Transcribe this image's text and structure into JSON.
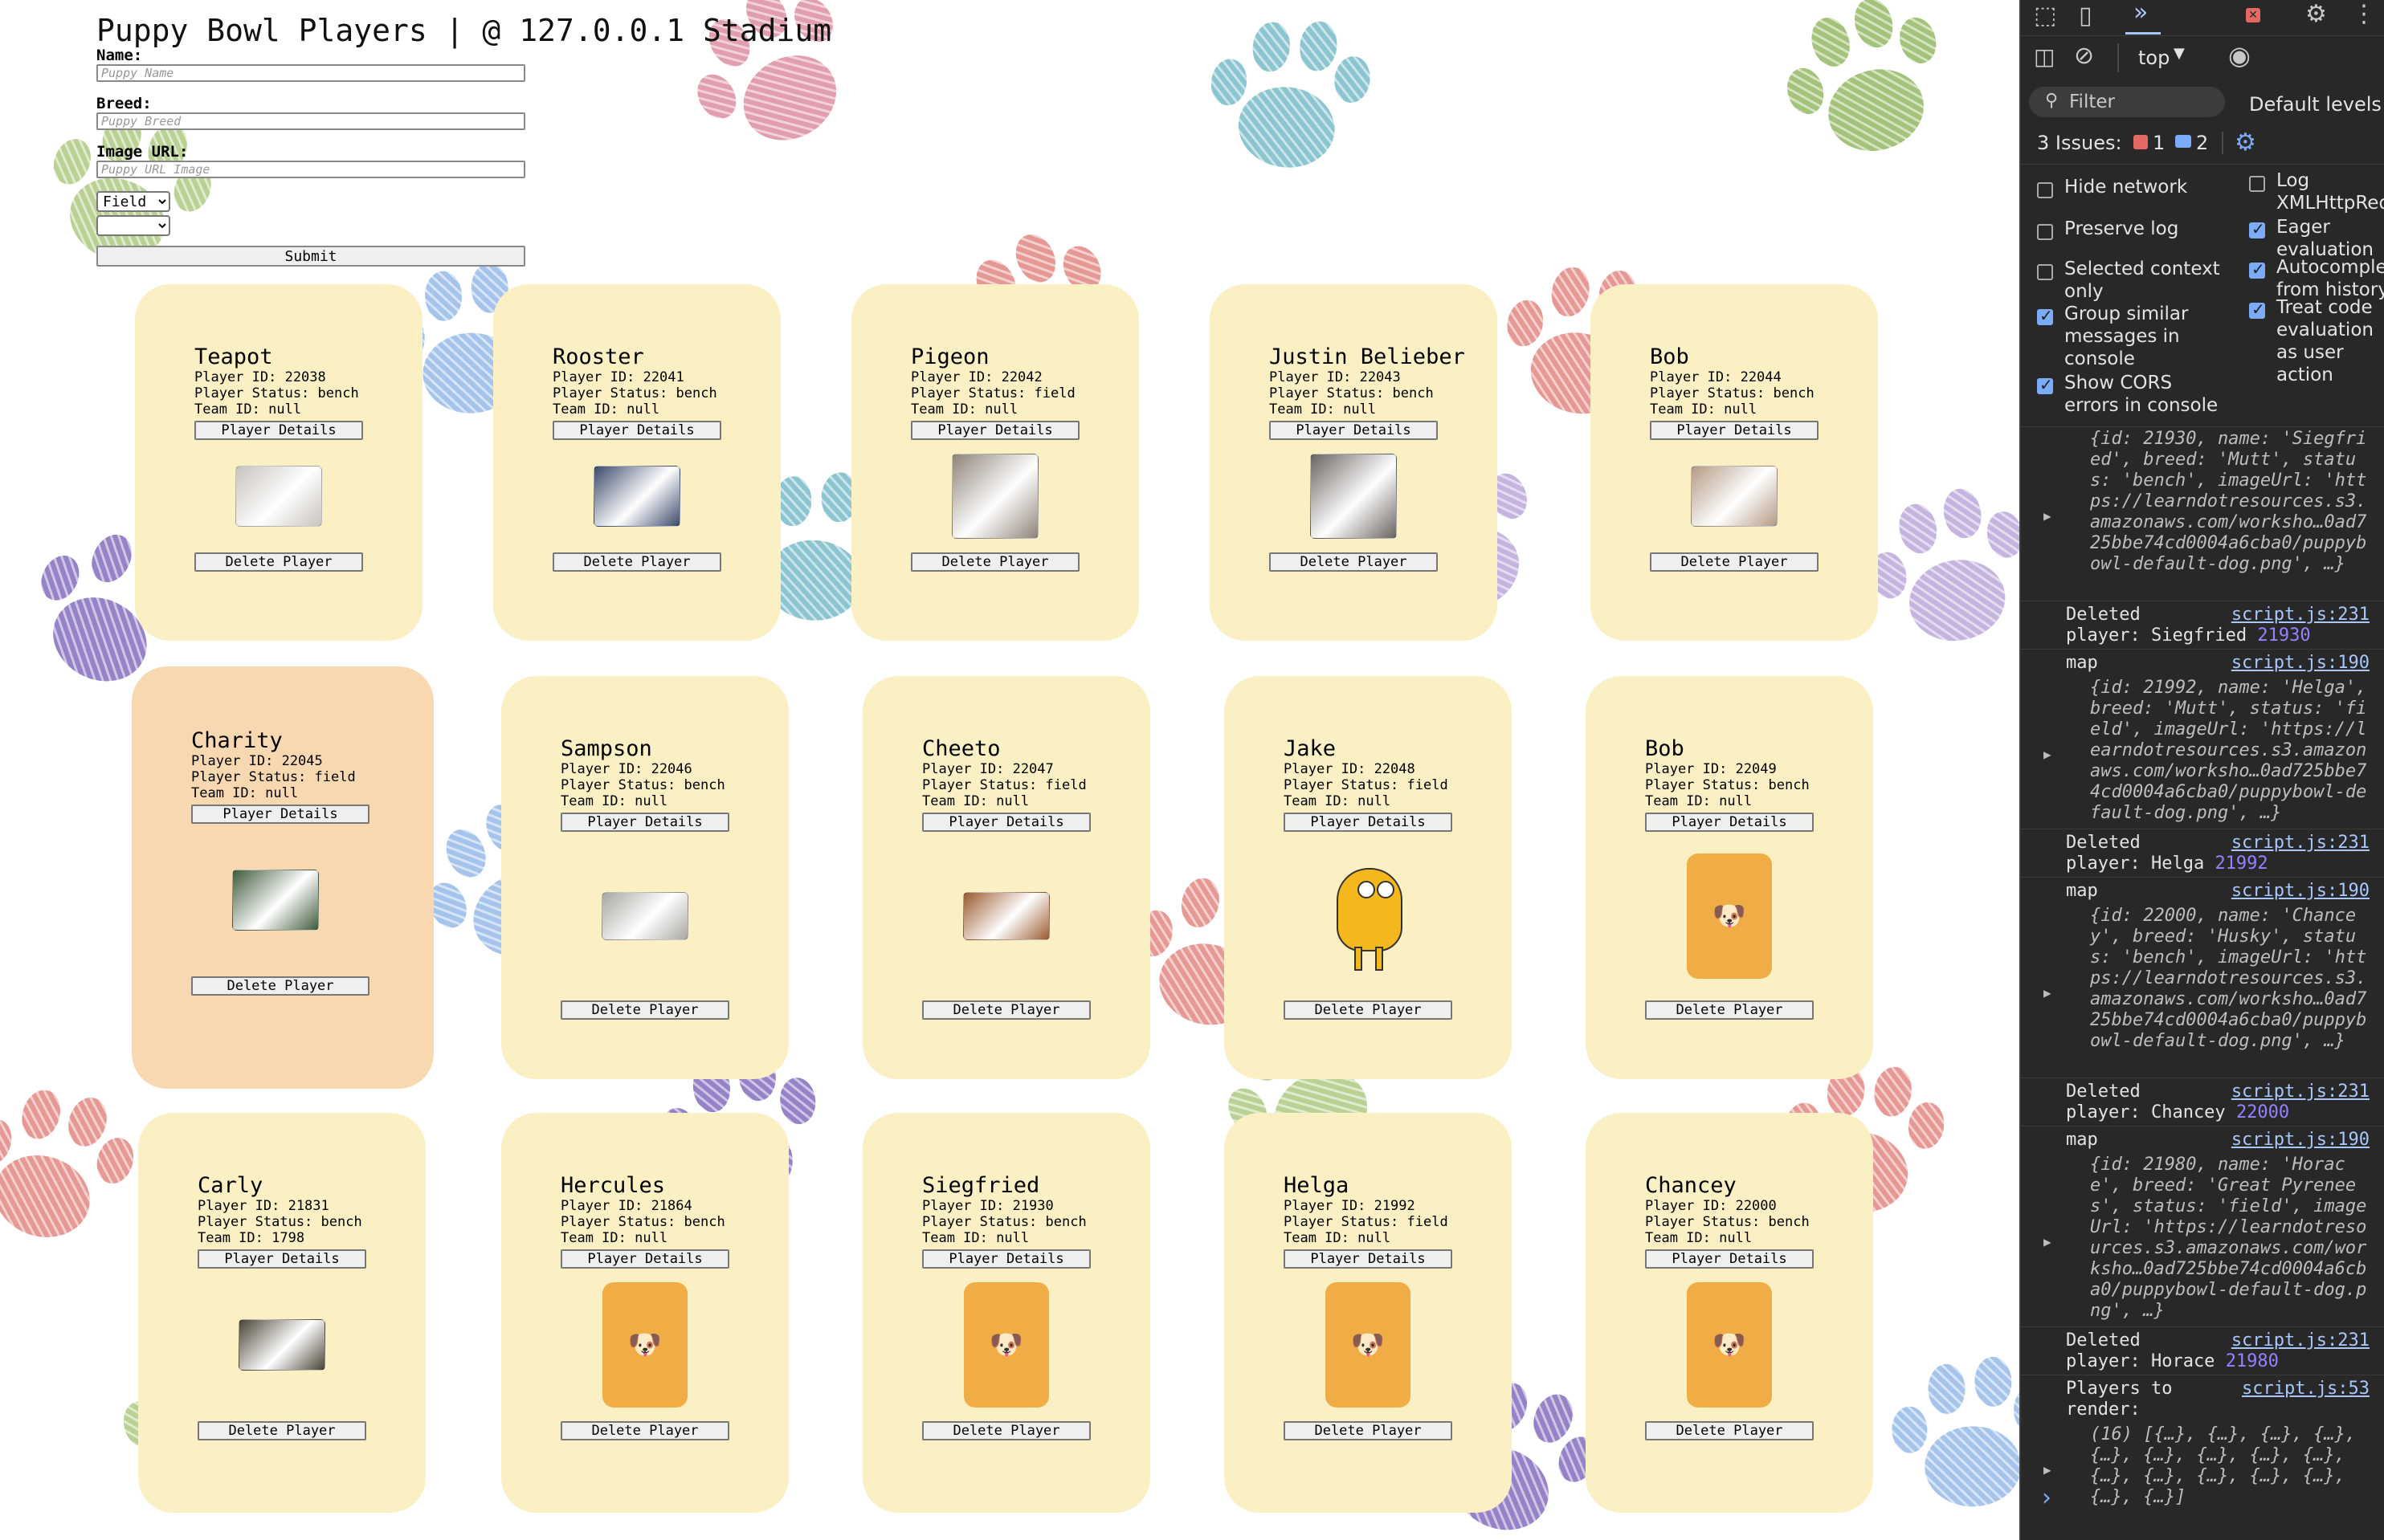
{
  "app": {
    "title": "Puppy Bowl Players | @ 127.0.0.1 Stadium"
  },
  "form": {
    "name_label": "Name:",
    "name_placeholder": "Puppy Name",
    "breed_label": "Breed:",
    "breed_placeholder": "Puppy Breed",
    "image_label": "Image URL:",
    "image_placeholder": "Puppy URL Image",
    "status_selected": "Field",
    "team_selected": "",
    "submit_label": "Submit"
  },
  "card_labels": {
    "details_button": "Player Details",
    "delete_button": "Delete Player",
    "placeholder_icon": "dog-face-icon"
  },
  "players": [
    {
      "name": "Teapot",
      "id": "Player ID: 22038",
      "status": "Player Status: bench",
      "team": "Team ID: null",
      "image": "photo",
      "photo_color": "#c8c3bd"
    },
    {
      "name": "Rooster",
      "id": "Player ID: 22041",
      "status": "Player Status: bench",
      "team": "Team ID: null",
      "image": "photo",
      "photo_color": "#3b4a6b"
    },
    {
      "name": "Pigeon",
      "id": "Player ID: 22042",
      "status": "Player Status: field",
      "team": "Team ID: null",
      "image": "photo",
      "photo_color": "#8f8378"
    },
    {
      "name": "Justin Belieber",
      "id": "Player ID: 22043",
      "status": "Player Status: bench",
      "team": "Team ID: null",
      "image": "photo",
      "photo_color": "#6a6460"
    },
    {
      "name": "Bob",
      "id": "Player ID: 22044",
      "status": "Player Status: bench",
      "team": "Team ID: null",
      "image": "photo",
      "photo_color": "#b49a84"
    },
    {
      "name": "Charity",
      "id": "Player ID: 22045",
      "status": "Player Status: field",
      "team": "Team ID: null",
      "image": "photo",
      "photo_color": "#3f5a3a"
    },
    {
      "name": "Sampson",
      "id": "Player ID: 22046",
      "status": "Player Status: bench",
      "team": "Team ID: null",
      "image": "photo",
      "photo_color": "#a9a7a2"
    },
    {
      "name": "Cheeto",
      "id": "Player ID: 22047",
      "status": "Player Status: field",
      "team": "Team ID: null",
      "image": "photo",
      "photo_color": "#9a5a2e"
    },
    {
      "name": "Jake",
      "id": "Player ID: 22048",
      "status": "Player Status: field",
      "team": "Team ID: null",
      "image": "cartoon",
      "photo_color": "#f4b81c"
    },
    {
      "name": "Bob",
      "id": "Player ID: 22049",
      "status": "Player Status: bench",
      "team": "Team ID: null",
      "image": "placeholder",
      "photo_color": "#f1ad45"
    },
    {
      "name": "Carly",
      "id": "Player ID: 21831",
      "status": "Player Status: bench",
      "team": "Team ID: 1798",
      "image": "photo",
      "photo_color": "#4a4436"
    },
    {
      "name": "Hercules",
      "id": "Player ID: 21864",
      "status": "Player Status: bench",
      "team": "Team ID: null",
      "image": "placeholder",
      "photo_color": "#f1ad45"
    },
    {
      "name": "Siegfried",
      "id": "Player ID: 21930",
      "status": "Player Status: bench",
      "team": "Team ID: null",
      "image": "placeholder",
      "photo_color": "#f1ad45"
    },
    {
      "name": "Helga",
      "id": "Player ID: 21992",
      "status": "Player Status: field",
      "team": "Team ID: null",
      "image": "placeholder",
      "photo_color": "#f1ad45"
    },
    {
      "name": "Chancey",
      "id": "Player ID: 22000",
      "status": "Player Status: bench",
      "team": "Team ID: null",
      "image": "placeholder",
      "photo_color": "#f1ad45"
    }
  ],
  "devtools": {
    "context": "top",
    "filter_placeholder": "Filter",
    "levels": "Default levels",
    "issues_label": "3 Issues:",
    "issues_errors": "1",
    "issues_info": "2",
    "settings": [
      {
        "label": "Hide network",
        "checked": false
      },
      {
        "label": "Log XMLHttpRequests",
        "checked": false
      },
      {
        "label": "Preserve log",
        "checked": false
      },
      {
        "label": "Eager evaluation",
        "checked": true
      },
      {
        "label": "Selected context only",
        "checked": false
      },
      {
        "label": "Autocomplete from history",
        "checked": true
      },
      {
        "label": "Group similar messages in console",
        "checked": true
      },
      {
        "label": "Treat code evaluation as user action",
        "checked": true
      },
      {
        "label": "Show CORS errors in console",
        "checked": true
      }
    ],
    "console": [
      {
        "kind": "object",
        "text": "{id: 21930, name: 'Siegfried', breed: 'Mutt', status: 'bench', imageUrl: 'https://learndotresources.s3.amazonaws.com/worksho…0ad725bbe74cd0004a6cba0/puppybowl-default-dog.png', …}"
      },
      {
        "kind": "log",
        "text": "Deleted\nplayer: Siegfried",
        "num": "21930",
        "source": "script.js:231"
      },
      {
        "kind": "log",
        "text": "map",
        "source": "script.js:190"
      },
      {
        "kind": "object",
        "text": "{id: 21992, name: 'Helga', breed: 'Mutt', status: 'field', imageUrl: 'https://learndotresources.s3.amazonaws.com/worksho…0ad725bbe74cd0004a6cba0/puppybowl-default-dog.png', …}"
      },
      {
        "kind": "log",
        "text": "Deleted\nplayer: Helga",
        "num": "21992",
        "source": "script.js:231"
      },
      {
        "kind": "log",
        "text": "map",
        "source": "script.js:190"
      },
      {
        "kind": "object",
        "text": "{id: 22000, name: 'Chancey', breed: 'Husky', status: 'bench', imageUrl: 'https://learndotresources.s3.amazonaws.com/worksho…0ad725bbe74cd0004a6cba0/puppybowl-default-dog.png', …}"
      },
      {
        "kind": "log",
        "text": "Deleted\nplayer: Chancey",
        "num": "22000",
        "source": "script.js:231"
      },
      {
        "kind": "log",
        "text": "map",
        "source": "script.js:190"
      },
      {
        "kind": "object",
        "text": "{id: 21980, name: 'Horace', breed: 'Great Pyrenees', status: 'field', imageUrl: 'https://learndotresources.s3.amazonaws.com/worksho…0ad725bbe74cd0004a6cba0/puppybowl-default-dog.png', …}"
      },
      {
        "kind": "log",
        "text": "Deleted\nplayer: Horace",
        "num": "21980",
        "source": "script.js:231"
      },
      {
        "kind": "log",
        "text": "Players to\nrender:",
        "source": "script.js:53"
      },
      {
        "kind": "object",
        "text": "(16) [{…}, {…}, {…}, {…}, {…}, {…}, {…}, {…}, {…}, {…}, {…}, {…}, {…}, {…}, {…}, {…}]"
      }
    ],
    "prompt_symbol": "›"
  }
}
